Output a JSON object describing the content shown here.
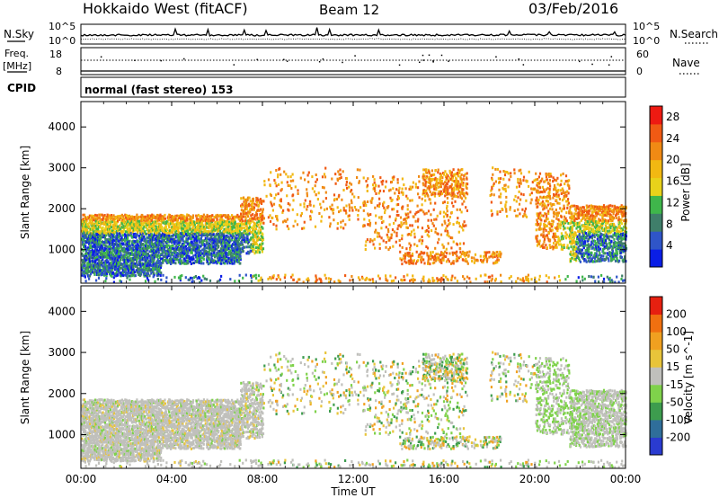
{
  "header": {
    "station": "Hokkaido West (fitACF)",
    "beam": "Beam 12",
    "date": "03/Feb/2016"
  },
  "top_panel": {
    "left_label": "N.Sky",
    "right_label": "N.Search",
    "left_ticks": [
      "10^5",
      "10^0"
    ],
    "right_ticks": [
      "10^5",
      "10^0"
    ]
  },
  "freq_panel": {
    "left_label_1": "Freq.",
    "left_label_2": "[MHz]",
    "right_label": "Nave",
    "left_ticks": [
      "18",
      "8"
    ],
    "right_ticks": [
      "60",
      "0"
    ]
  },
  "cpid_panel": {
    "label": "CPID",
    "text": "normal (fast stereo) 153"
  },
  "chart_data": [
    {
      "type": "heatmap",
      "quantity": "Power",
      "ylabel": "Slant Range [km]",
      "ylim": [
        180,
        4620
      ],
      "yticks": [
        "1000",
        "2000",
        "3000",
        "4000"
      ],
      "colorbar_label": "Power [dB]",
      "colorbar_ticks": [
        "4",
        "8",
        "12",
        "16",
        "20",
        "24",
        "28"
      ],
      "colorbar_range": [
        0,
        30
      ],
      "colors": [
        "#0a1ee6",
        "#2f55c8",
        "#3f7e6a",
        "#3fb64b",
        "#e8d21a",
        "#f2b812",
        "#f08a14",
        "#f05a14",
        "#ee1a12"
      ]
    },
    {
      "type": "heatmap",
      "quantity": "Velocity",
      "ylabel": "Slant Range [km]",
      "ylim": [
        180,
        4620
      ],
      "yticks": [
        "1000",
        "2000",
        "3000",
        "4000"
      ],
      "colorbar_label": "Velocity [m s^-1]",
      "colorbar_ticks": [
        "200",
        "100",
        "50",
        "15",
        "-15",
        "-50",
        "-100",
        "-200"
      ],
      "colors": [
        "#2a3bd0",
        "#2f6e9a",
        "#3d9c4e",
        "#7fd24b",
        "#c0c0bc",
        "#e8c43a",
        "#f0a020",
        "#f07010",
        "#e62010"
      ]
    }
  ],
  "x_axis": {
    "ticks": [
      "00:00",
      "04:00",
      "08:00",
      "12:00",
      "16:00",
      "20:00",
      "00:00"
    ],
    "label": "Time UT"
  }
}
